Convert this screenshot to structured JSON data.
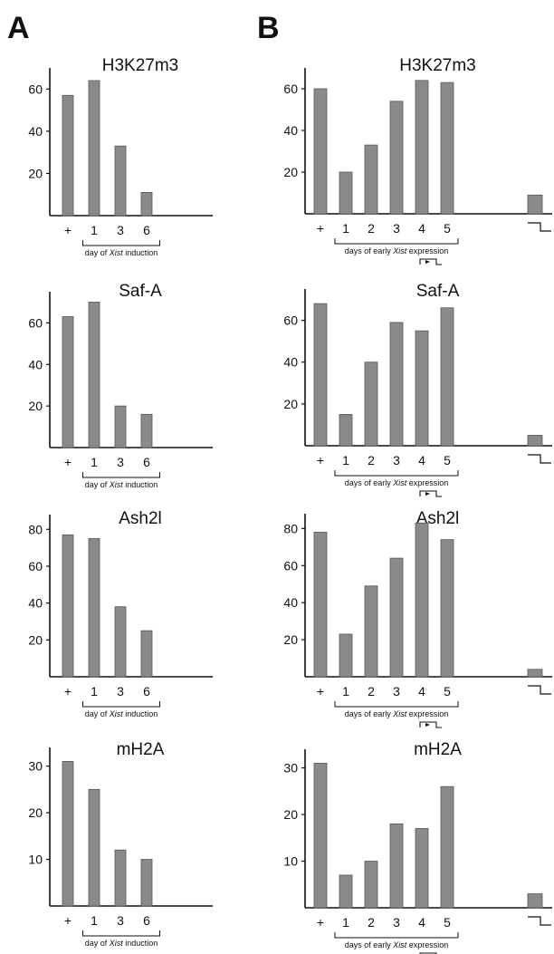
{
  "panels": [
    {
      "label": "A"
    },
    {
      "label": "B"
    }
  ],
  "chart_data": [
    {
      "type": "bar",
      "panel": "A",
      "title": "H3K27m3",
      "categories": [
        "+",
        "1",
        "3",
        "6"
      ],
      "values": [
        57,
        64,
        33,
        11
      ],
      "xlabel": "day of Xist induction",
      "yticks": [
        20,
        40,
        60
      ],
      "ylim": [
        0,
        70
      ]
    },
    {
      "type": "bar",
      "panel": "B",
      "title": "H3K27m3",
      "categories": [
        "+",
        "1",
        "2",
        "3",
        "4",
        "5",
        ""
      ],
      "values": [
        60,
        20,
        33,
        54,
        64,
        63,
        9
      ],
      "xlabel": "days of early Xist expression",
      "yticks": [
        20,
        40,
        60
      ],
      "ylim": [
        0,
        70
      ]
    },
    {
      "type": "bar",
      "panel": "A",
      "title": "Saf-A",
      "categories": [
        "+",
        "1",
        "3",
        "6"
      ],
      "values": [
        63,
        70,
        20,
        16
      ],
      "xlabel": "day of Xist induction",
      "yticks": [
        20,
        40,
        60
      ],
      "ylim": [
        0,
        75
      ]
    },
    {
      "type": "bar",
      "panel": "B",
      "title": "Saf-A",
      "categories": [
        "+",
        "1",
        "2",
        "3",
        "4",
        "5",
        ""
      ],
      "values": [
        68,
        15,
        40,
        59,
        55,
        66,
        5
      ],
      "xlabel": "days of early Xist expression",
      "yticks": [
        20,
        40,
        60
      ],
      "ylim": [
        0,
        75
      ]
    },
    {
      "type": "bar",
      "panel": "A",
      "title": "Ash2l",
      "categories": [
        "+",
        "1",
        "3",
        "6"
      ],
      "values": [
        77,
        75,
        38,
        25
      ],
      "xlabel": "day of Xist induction",
      "yticks": [
        20,
        40,
        60,
        80
      ],
      "ylim": [
        0,
        88
      ]
    },
    {
      "type": "bar",
      "panel": "B",
      "title": "Ash2l",
      "categories": [
        "+",
        "1",
        "2",
        "3",
        "4",
        "5",
        ""
      ],
      "values": [
        78,
        23,
        49,
        64,
        83,
        74,
        4
      ],
      "xlabel": "days of early Xist expression",
      "yticks": [
        20,
        40,
        60,
        80
      ],
      "ylim": [
        0,
        88
      ]
    },
    {
      "type": "bar",
      "panel": "A",
      "title": "mH2A",
      "categories": [
        "+",
        "1",
        "3",
        "6"
      ],
      "values": [
        31,
        25,
        12,
        10
      ],
      "xlabel": "day of Xist induction",
      "yticks": [
        10,
        20,
        30
      ],
      "ylim": [
        0,
        34
      ]
    },
    {
      "type": "bar",
      "panel": "B",
      "title": "mH2A",
      "categories": [
        "+",
        "1",
        "2",
        "3",
        "4",
        "5",
        ""
      ],
      "values": [
        31,
        7,
        10,
        18,
        17,
        26,
        3
      ],
      "xlabel": "days of early Xist expression",
      "yticks": [
        10,
        20,
        30
      ],
      "ylim": [
        0,
        34
      ]
    }
  ]
}
